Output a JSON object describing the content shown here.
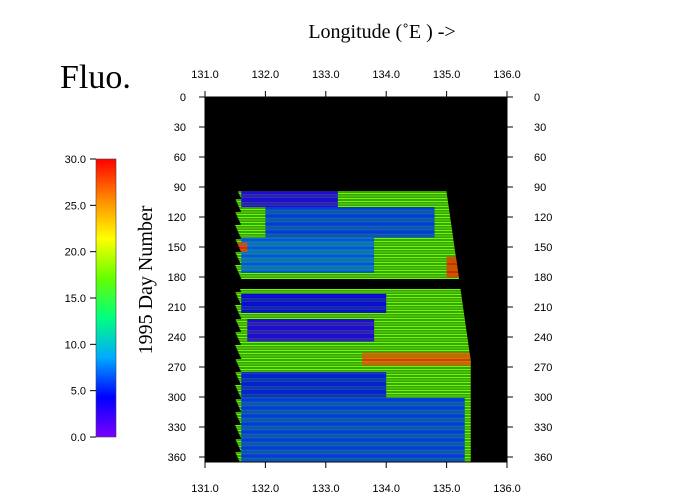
{
  "chart_data": {
    "type": "heatmap",
    "title": "Fluo.",
    "xlabel": "Longitude  (˚E ) ->",
    "ylabel": "1995  Day Number",
    "xlim": [
      131.0,
      136.0
    ],
    "ylim": [
      0,
      365
    ],
    "x_ticks": [
      "131.0",
      "132.0",
      "133.0",
      "134.0",
      "135.0",
      "136.0"
    ],
    "y_ticks": [
      "0",
      "30",
      "60",
      "90",
      "120",
      "150",
      "180",
      "210",
      "240",
      "270",
      "300",
      "330",
      "360"
    ],
    "colorbar": {
      "range": [
        0.0,
        30.0
      ],
      "ticks": [
        "0.0",
        "5.0",
        "10.0",
        "15.0",
        "20.0",
        "25.0",
        "30.0"
      ],
      "colors": [
        "#7a00ff",
        "#0000ff",
        "#00aaff",
        "#00ff80",
        "#66ff00",
        "#ffff00",
        "#ff8800",
        "#ff0000"
      ]
    },
    "background_color": "#000000",
    "no_data_color": "#000000",
    "track_day_range": [
      95,
      365
    ],
    "data_gap_days": [
      182,
      192
    ],
    "track_lon_start": [
      131.5,
      131.6
    ],
    "track_lon_end": [
      135.0,
      135.4
    ],
    "regions": [
      {
        "days": [
          95,
          110
        ],
        "lon": [
          131.6,
          133.2
        ],
        "value": 3.0
      },
      {
        "days": [
          110,
          140
        ],
        "lon": [
          132.0,
          134.8
        ],
        "value": 6.0
      },
      {
        "days": [
          140,
          175
        ],
        "lon": [
          131.6,
          133.8
        ],
        "value": 7.0
      },
      {
        "days": [
          160,
          180
        ],
        "lon": [
          135.0,
          135.4
        ],
        "value": 28.0
      },
      {
        "days": [
          145,
          155
        ],
        "lon": [
          131.5,
          131.7
        ],
        "value": 28.0
      },
      {
        "days": [
          196,
          215
        ],
        "lon": [
          131.6,
          134.0
        ],
        "value": 4.0
      },
      {
        "days": [
          222,
          245
        ],
        "lon": [
          131.7,
          133.8
        ],
        "value": 3.0
      },
      {
        "days": [
          255,
          268
        ],
        "lon": [
          133.6,
          135.4
        ],
        "value": 27.0
      },
      {
        "days": [
          275,
          300
        ],
        "lon": [
          131.6,
          134.0
        ],
        "value": 5.0
      },
      {
        "days": [
          300,
          365
        ],
        "lon": [
          131.6,
          135.3
        ],
        "value": 6.0
      }
    ],
    "background_value": 17.0,
    "grid": false,
    "legend": "left"
  }
}
